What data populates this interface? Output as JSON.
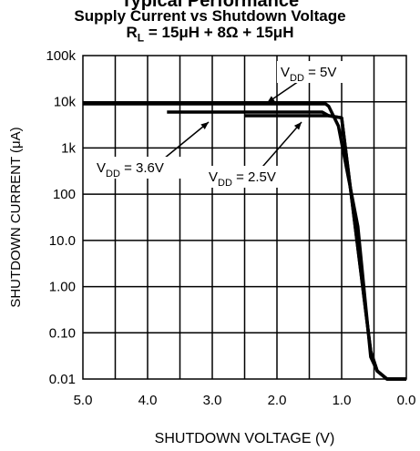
{
  "chart_data": {
    "type": "line",
    "title_partial": "Typical Performance",
    "title": "Supply Current vs Shutdown Voltage",
    "subtitle": {
      "main": "R",
      "sub": "L",
      "rest": " = 15μH + 8Ω + 15μH"
    },
    "xlabel": "SHUTDOWN VOLTAGE (V)",
    "ylabel": "SHUTDOWN CURRENT (μA)",
    "x_axis": {
      "reversed": true,
      "xlim": [
        5.0,
        0.0
      ],
      "ticks": [
        5.0,
        4.0,
        3.0,
        2.0,
        1.0,
        0.0
      ],
      "tick_labels": [
        "5.0",
        "4.0",
        "3.0",
        "2.0",
        "1.0",
        "0.0"
      ],
      "minor_gridlines_every": 0.5
    },
    "y_axis": {
      "scale": "log",
      "ylim": [
        0.01,
        100000
      ],
      "ticks": [
        0.01,
        0.1,
        1,
        10,
        100,
        1000,
        10000,
        100000
      ],
      "tick_labels": [
        "0.01",
        "0.10",
        "1.00",
        "10.0",
        "100",
        "1k",
        "10k",
        "100k"
      ]
    },
    "grid": true,
    "series": [
      {
        "name": "V_DD = 5V",
        "label": {
          "main": "V",
          "sub": "DD",
          "rest": " = 5V"
        },
        "x": [
          5.0,
          1.25,
          1.2,
          1.05,
          0.75,
          0.55,
          0.45,
          0.3,
          0.0
        ],
        "y": [
          9000,
          9000,
          8000,
          3000,
          20,
          0.03,
          0.015,
          0.01,
          0.01
        ]
      },
      {
        "name": "V_DD = 3.6V",
        "label": {
          "main": "V",
          "sub": "DD",
          "rest": " = 3.6V"
        },
        "x": [
          3.7,
          1.3,
          1.2,
          1.0,
          0.55,
          0.45,
          0.3,
          0.0
        ],
        "y": [
          6000,
          6000,
          5000,
          4500,
          0.04,
          0.015,
          0.01,
          0.01
        ]
      },
      {
        "name": "V_DD = 2.5V",
        "label": {
          "main": "V",
          "sub": "DD",
          "rest": " = 2.5V"
        },
        "x": [
          2.5,
          1.3,
          1.2,
          1.0,
          0.55,
          0.45,
          0.3,
          0.0
        ],
        "y": [
          5000,
          5000,
          5000,
          4500,
          0.04,
          0.015,
          0.01,
          0.01
        ]
      }
    ],
    "line_color": "#000000"
  }
}
